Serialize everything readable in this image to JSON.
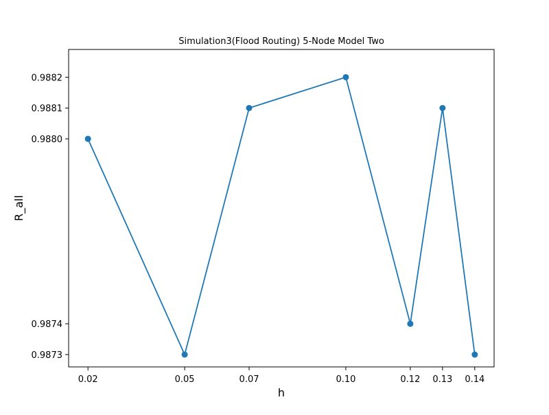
{
  "chart_data": {
    "type": "line",
    "title": "Simulation3(Flood Routing) 5-Node Model Two",
    "xlabel": "h",
    "ylabel": "R_all",
    "x": [
      0.02,
      0.05,
      0.07,
      0.1,
      0.12,
      0.13,
      0.14
    ],
    "xtick_labels": [
      "0.02",
      "0.05",
      "0.07",
      "0.10",
      "0.12",
      "0.13",
      "0.14"
    ],
    "series": [
      {
        "values": [
          0.988,
          0.9873,
          0.9881,
          0.9882,
          0.9874,
          0.9881,
          0.9873
        ],
        "color": "#1f77b4",
        "marker": "circle"
      }
    ],
    "yticks": [
      0.9873,
      0.9874,
      0.988,
      0.9881,
      0.9882
    ],
    "ytick_labels": [
      "0.9873",
      "0.9874",
      "0.9880",
      "0.9881",
      "0.9882"
    ],
    "xlim": [
      0.014,
      0.146
    ],
    "ylim": [
      0.98726,
      0.98829
    ],
    "grid": false,
    "legend": "none"
  }
}
